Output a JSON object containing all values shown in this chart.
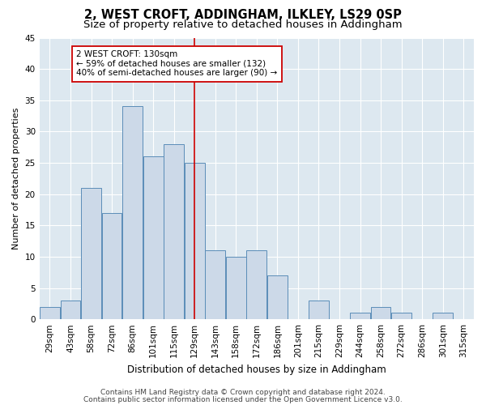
{
  "title1": "2, WEST CROFT, ADDINGHAM, ILKLEY, LS29 0SP",
  "title2": "Size of property relative to detached houses in Addingham",
  "xlabel": "Distribution of detached houses by size in Addingham",
  "ylabel": "Number of detached properties",
  "categories": [
    "29sqm",
    "43sqm",
    "58sqm",
    "72sqm",
    "86sqm",
    "101sqm",
    "115sqm",
    "129sqm",
    "143sqm",
    "158sqm",
    "172sqm",
    "186sqm",
    "201sqm",
    "215sqm",
    "229sqm",
    "244sqm",
    "258sqm",
    "272sqm",
    "286sqm",
    "301sqm",
    "315sqm"
  ],
  "values": [
    2,
    3,
    21,
    17,
    34,
    26,
    28,
    25,
    11,
    10,
    11,
    7,
    0,
    3,
    0,
    1,
    2,
    1,
    0,
    1,
    0
  ],
  "bar_color": "#ccd9e8",
  "bar_edge_color": "#5b8db8",
  "vline_x_index": 7,
  "vline_color": "#cc0000",
  "annotation_text": "2 WEST CROFT: 130sqm\n← 59% of detached houses are smaller (132)\n40% of semi-detached houses are larger (90) →",
  "annotation_box_facecolor": "#ffffff",
  "annotation_box_edgecolor": "#cc0000",
  "ylim": [
    0,
    45
  ],
  "yticks": [
    0,
    5,
    10,
    15,
    20,
    25,
    30,
    35,
    40,
    45
  ],
  "plot_bg": "#dde8f0",
  "grid_color": "#ffffff",
  "footer1": "Contains HM Land Registry data © Crown copyright and database right 2024.",
  "footer2": "Contains public sector information licensed under the Open Government Licence v3.0.",
  "title1_fontsize": 10.5,
  "title2_fontsize": 9.5,
  "xlabel_fontsize": 8.5,
  "ylabel_fontsize": 8,
  "tick_fontsize": 7.5,
  "annot_fontsize": 7.5,
  "footer_fontsize": 6.5
}
